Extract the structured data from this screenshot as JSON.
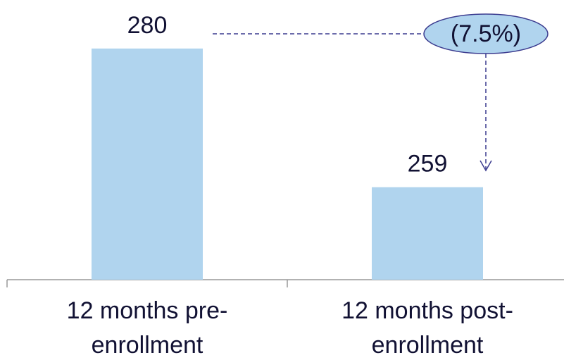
{
  "chart_data": {
    "type": "bar",
    "categories": [
      [
        "12 months pre-",
        "enrollment"
      ],
      [
        "12 months post-",
        "enrollment"
      ]
    ],
    "values": [
      280,
      259
    ],
    "color": "#b0d4ee",
    "ylim": [
      245,
      285
    ],
    "annotation": "(7.5%)"
  }
}
